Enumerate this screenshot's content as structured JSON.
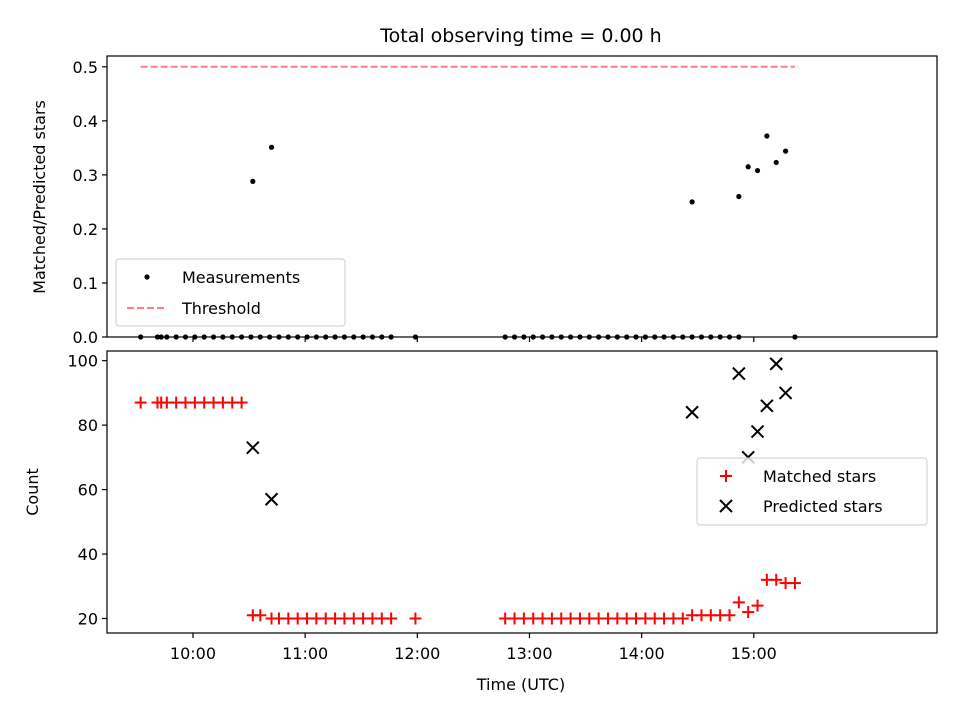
{
  "chart_data": [
    {
      "type": "scatter",
      "title": "Total observing time = 0.00 h",
      "xlabel": "",
      "ylabel": "Matched/Predicted stars",
      "ylim": [
        0,
        0.52
      ],
      "xlim": [
        "09:14",
        "16:38"
      ],
      "yticks": [
        "0.0",
        "0.1",
        "0.2",
        "0.3",
        "0.4",
        "0.5"
      ],
      "legend_position": "lower-left",
      "threshold": {
        "name": "Threshold",
        "value": 0.5,
        "x_range": [
          "09:32",
          "15:22"
        ],
        "color": "#ff7f7f"
      },
      "series": [
        {
          "name": "Measurements",
          "color": "#000000",
          "x": [
            "09:32",
            "09:41",
            "09:43",
            "09:46",
            "09:51",
            "09:56",
            "10:01",
            "10:06",
            "10:11",
            "10:16",
            "10:21",
            "10:26",
            "10:31",
            "10:36",
            "10:41",
            "10:46",
            "10:51",
            "10:56",
            "11:01",
            "11:06",
            "11:11",
            "11:16",
            "11:21",
            "11:26",
            "11:31",
            "11:36",
            "11:41",
            "11:46",
            "11:59",
            "12:47",
            "12:52",
            "12:57",
            "13:02",
            "13:07",
            "13:12",
            "13:17",
            "13:22",
            "13:27",
            "13:32",
            "13:37",
            "13:42",
            "13:47",
            "13:52",
            "13:57",
            "14:02",
            "14:07",
            "14:12",
            "14:17",
            "14:22",
            "14:27",
            "14:32",
            "14:37",
            "14:42",
            "14:47",
            "14:52",
            "15:22",
            "10:32",
            "10:42",
            "14:27",
            "14:52",
            "14:57",
            "15:02",
            "15:07",
            "15:12",
            "15:17"
          ],
          "y": [
            0,
            0,
            0,
            0,
            0,
            0,
            0,
            0,
            0,
            0,
            0,
            0,
            0,
            0,
            0,
            0,
            0,
            0,
            0,
            0,
            0,
            0,
            0,
            0,
            0,
            0,
            0,
            0,
            0,
            0,
            0,
            0,
            0,
            0,
            0,
            0,
            0,
            0,
            0,
            0,
            0,
            0,
            0,
            0,
            0,
            0,
            0,
            0,
            0,
            0,
            0,
            0,
            0,
            0,
            0,
            0,
            0.288,
            0.351,
            0.25,
            0.26,
            0.315,
            0.308,
            0.372,
            0.323,
            0.344
          ]
        }
      ]
    },
    {
      "type": "scatter",
      "title": "",
      "xlabel": "Time (UTC)",
      "ylabel": "Count",
      "ylim": [
        15.5,
        103
      ],
      "xlim": [
        "09:14",
        "16:38"
      ],
      "yticks": [
        "20",
        "40",
        "60",
        "80",
        "100"
      ],
      "xticks": [
        "10:00",
        "11:00",
        "12:00",
        "13:00",
        "14:00",
        "15:00"
      ],
      "legend_position": "center-right",
      "series": [
        {
          "name": "Matched stars",
          "color": "#ff0000",
          "marker": "plus",
          "x": [
            "09:32",
            "09:41",
            "09:43",
            "09:46",
            "09:51",
            "09:56",
            "10:01",
            "10:06",
            "10:11",
            "10:16",
            "10:21",
            "10:26",
            "10:32",
            "10:36",
            "10:42",
            "10:46",
            "10:51",
            "10:56",
            "11:01",
            "11:06",
            "11:11",
            "11:16",
            "11:21",
            "11:26",
            "11:31",
            "11:36",
            "11:41",
            "11:46",
            "11:59",
            "12:47",
            "12:52",
            "12:57",
            "13:02",
            "13:07",
            "13:12",
            "13:17",
            "13:22",
            "13:27",
            "13:32",
            "13:37",
            "13:42",
            "13:47",
            "13:52",
            "13:57",
            "14:02",
            "14:07",
            "14:12",
            "14:17",
            "14:22",
            "14:27",
            "14:32",
            "14:37",
            "14:42",
            "14:47",
            "14:52",
            "14:57",
            "15:02",
            "15:07",
            "15:12",
            "15:17",
            "15:22"
          ],
          "y": [
            87,
            87,
            87,
            87,
            87,
            87,
            87,
            87,
            87,
            87,
            87,
            87,
            21,
            21,
            20,
            20,
            20,
            20,
            20,
            20,
            20,
            20,
            20,
            20,
            20,
            20,
            20,
            20,
            20,
            20,
            20,
            20,
            20,
            20,
            20,
            20,
            20,
            20,
            20,
            20,
            20,
            20,
            20,
            20,
            20,
            20,
            20,
            20,
            20,
            21,
            21,
            21,
            21,
            21,
            25,
            22,
            24,
            32,
            32,
            31,
            31
          ]
        },
        {
          "name": "Predicted stars",
          "color": "#000000",
          "marker": "x",
          "x": [
            "10:32",
            "10:42",
            "14:27",
            "14:52",
            "14:57",
            "15:02",
            "15:07",
            "15:12",
            "15:17"
          ],
          "y": [
            73,
            57,
            84,
            96,
            70,
            78,
            86,
            99,
            90
          ]
        }
      ]
    }
  ]
}
